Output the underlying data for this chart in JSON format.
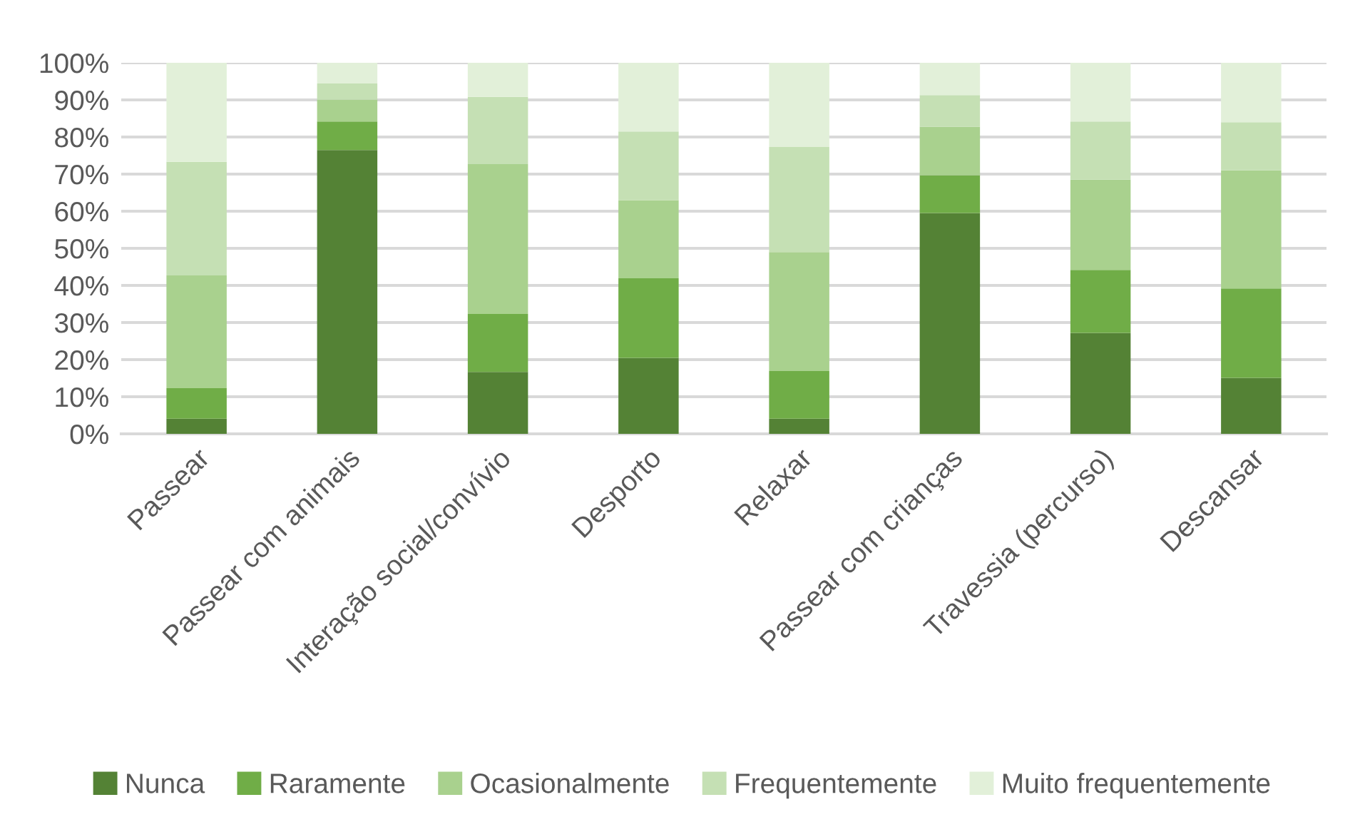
{
  "chart_data": {
    "type": "bar",
    "stacked": true,
    "categories": [
      "Passear",
      "Passear com animais",
      "Interação social/convívio",
      "Desporto",
      "Relaxar",
      "Passear com crianças",
      "Travessia (percurso)",
      "Descansar"
    ],
    "series": [
      {
        "name": "Nunca",
        "color": "#548235",
        "values": [
          4.1,
          76.5,
          16.7,
          20.5,
          4.1,
          59.5,
          27.2,
          15.1
        ]
      },
      {
        "name": "Raramente",
        "color": "#70ad47",
        "values": [
          8.2,
          7.7,
          15.6,
          21.4,
          12.8,
          10.2,
          17.0,
          24.1
        ]
      },
      {
        "name": "Ocasionalmente",
        "color": "#a9d18e",
        "values": [
          30.4,
          5.9,
          40.4,
          21.1,
          32.1,
          13.1,
          24.3,
          31.8
        ]
      },
      {
        "name": "Frequentemente",
        "color": "#c5e0b4",
        "values": [
          30.6,
          4.3,
          18.1,
          18.5,
          28.3,
          8.5,
          15.7,
          13.0
        ]
      },
      {
        "name": "Muito frequentemente",
        "color": "#e2f0d9",
        "values": [
          26.7,
          5.6,
          9.2,
          18.5,
          22.7,
          8.7,
          15.8,
          16.0
        ]
      }
    ],
    "ylim": [
      0,
      100
    ],
    "yticks": [
      {
        "value": 0,
        "label": "0%"
      },
      {
        "value": 10,
        "label": "10%"
      },
      {
        "value": 20,
        "label": "20%"
      },
      {
        "value": 30,
        "label": "30%"
      },
      {
        "value": 40,
        "label": "40%"
      },
      {
        "value": 50,
        "label": "50%"
      },
      {
        "value": 60,
        "label": "60%"
      },
      {
        "value": 70,
        "label": "70%"
      },
      {
        "value": 80,
        "label": "80%"
      },
      {
        "value": 90,
        "label": "90%"
      },
      {
        "value": 100,
        "label": "100%"
      }
    ],
    "grid": "y",
    "legend": "bottom"
  }
}
